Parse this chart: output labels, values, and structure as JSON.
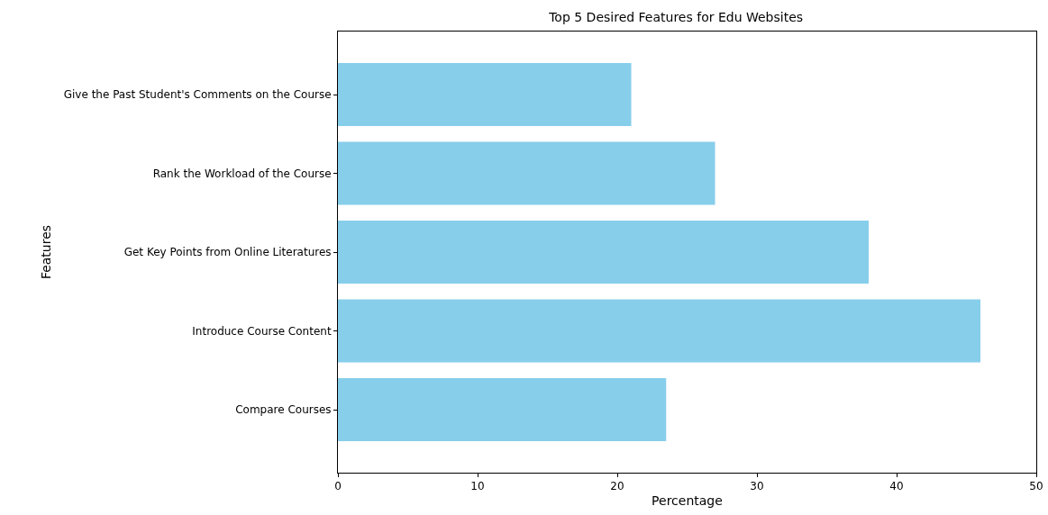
{
  "chart_data": {
    "type": "bar",
    "orientation": "horizontal",
    "title": "Top 5 Desired Features for Edu Websites",
    "xlabel": "Percentage",
    "ylabel": "Features",
    "categories": [
      "Give the Past Student's Comments on the Course",
      "Rank the Workload of the Course",
      "Get Key Points from Online Literatures",
      "Introduce Course Content",
      "Compare Courses"
    ],
    "values": [
      21,
      27,
      38,
      46,
      23.5
    ],
    "color": "#87ceeb",
    "xlim": [
      0,
      50
    ],
    "xticks": [
      0,
      10,
      20,
      30,
      40,
      50
    ],
    "grid": false
  }
}
